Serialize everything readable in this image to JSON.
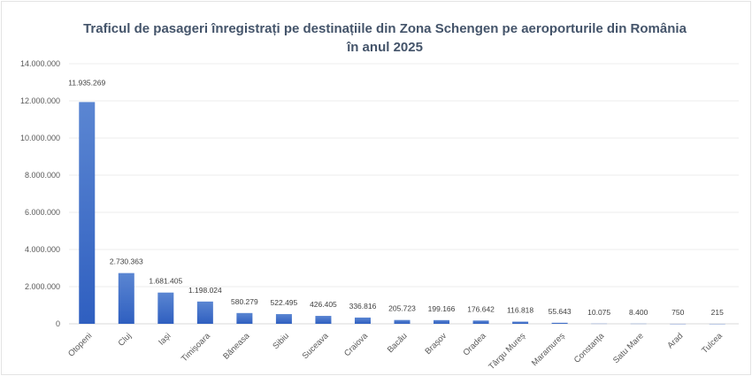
{
  "chart_data": {
    "type": "bar",
    "title_line1": "Traficul de pasageri înregistrați pe destinațiile din Zona Schengen pe aeroporturile din România",
    "title_line2": "în anul 2025",
    "categories": [
      "Otopeni",
      "Cluj",
      "Iași",
      "Timișoara",
      "Băneasa",
      "Sibiu",
      "Suceava",
      "Craiova",
      "Bacău",
      "Brașov",
      "Oradea",
      "Târgu Mureș",
      "Maramureș",
      "Constanța",
      "Satu Mare",
      "Arad",
      "Tulcea"
    ],
    "values": [
      11935269,
      2730363,
      1681405,
      1198024,
      580279,
      522495,
      426405,
      336816,
      205723,
      199166,
      176642,
      116818,
      55643,
      10075,
      8400,
      750,
      215
    ],
    "data_labels": [
      "11.935.269",
      "2.730.363",
      "1.681.405",
      "1.198.024",
      "580.279",
      "522.495",
      "426.405",
      "336.816",
      "205.723",
      "199.166",
      "176.642",
      "116.818",
      "55.643",
      "10.075",
      "8.400",
      "750",
      "215"
    ],
    "ylim": [
      0,
      14000000
    ],
    "yticks": [
      "0",
      "2.000.000",
      "4.000.000",
      "6.000.000",
      "8.000.000",
      "10.000.000",
      "12.000.000",
      "14.000.000"
    ],
    "grid": true,
    "legend": "none",
    "bar_color": "#4472c4"
  }
}
